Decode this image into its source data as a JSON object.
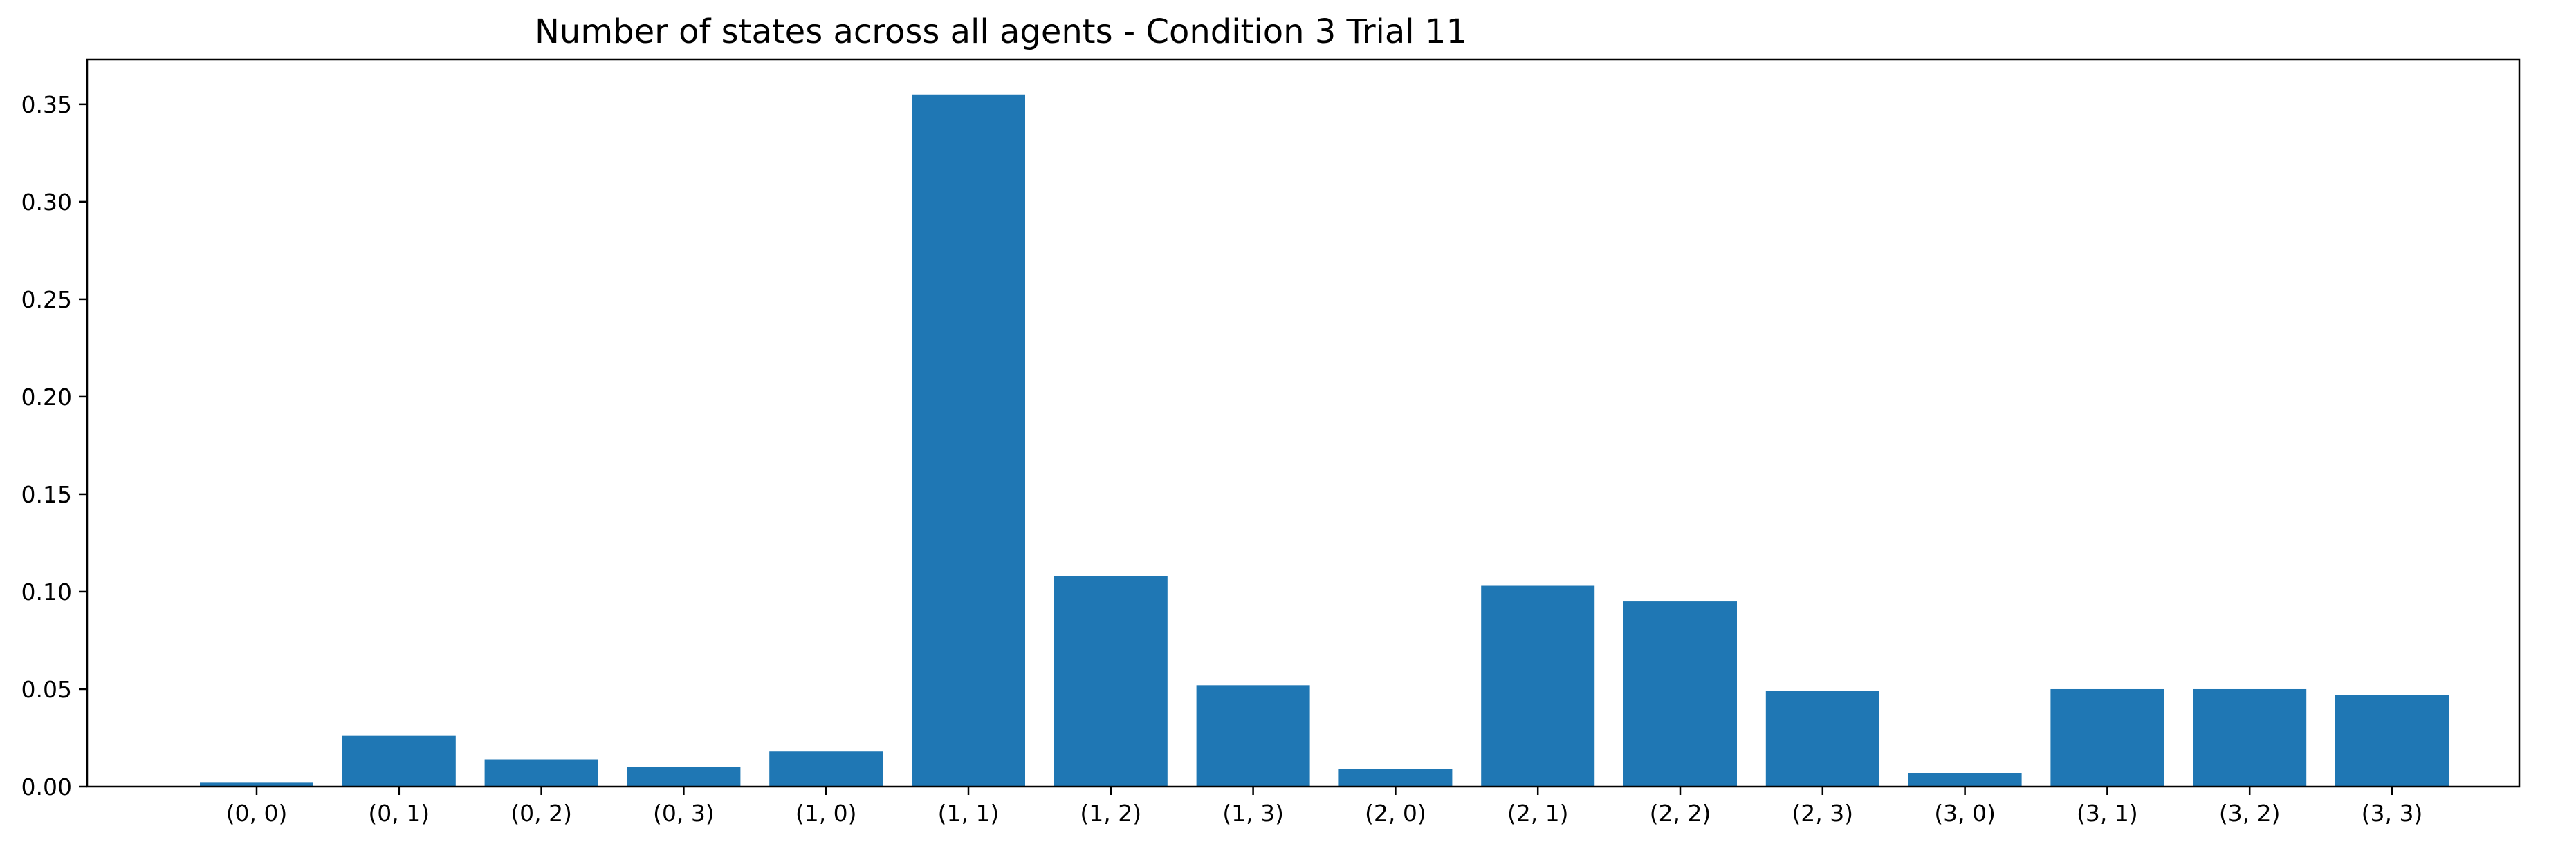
{
  "chart_data": {
    "type": "bar",
    "title": "Number of states across all agents - Condition 3 Trial 11",
    "xlabel": "",
    "ylabel": "",
    "categories": [
      "(0, 0)",
      "(0, 1)",
      "(0, 2)",
      "(0, 3)",
      "(1, 0)",
      "(1, 1)",
      "(1, 2)",
      "(1, 3)",
      "(2, 0)",
      "(2, 1)",
      "(2, 2)",
      "(2, 3)",
      "(3, 0)",
      "(3, 1)",
      "(3, 2)",
      "(3, 3)"
    ],
    "values": [
      0.002,
      0.026,
      0.014,
      0.01,
      0.018,
      0.355,
      0.108,
      0.052,
      0.009,
      0.103,
      0.095,
      0.049,
      0.007,
      0.05,
      0.05,
      0.047
    ],
    "ylim": [
      0,
      0.373
    ],
    "yticks": [
      0.0,
      0.05,
      0.1,
      0.15,
      0.2,
      0.25,
      0.3,
      0.35
    ],
    "ytick_labels": [
      "0.00",
      "0.05",
      "0.10",
      "0.15",
      "0.20",
      "0.25",
      "0.30",
      "0.35"
    ],
    "bar_color": "#1f77b4",
    "grid": false,
    "legend": "none"
  }
}
